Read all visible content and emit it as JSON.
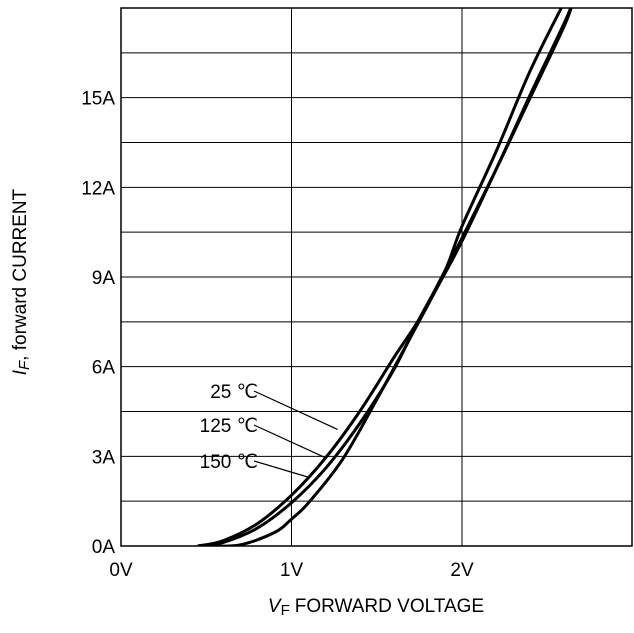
{
  "chart_data": {
    "type": "line",
    "xlabel": "FORWARD VOLTAGE",
    "xlabel_symbol": "V",
    "xlabel_subscript": "F",
    "ylabel": ", forward CURRENT",
    "ylabel_symbol": "I",
    "ylabel_subscript": "F",
    "xlim": [
      0,
      3
    ],
    "ylim": [
      0,
      18
    ],
    "x_ticks": [
      {
        "value": 0,
        "label": "0V"
      },
      {
        "value": 1,
        "label": "1V"
      },
      {
        "value": 2,
        "label": "2V"
      }
    ],
    "y_ticks": [
      {
        "value": 0,
        "label": "0A"
      },
      {
        "value": 3,
        "label": "3A"
      },
      {
        "value": 6,
        "label": "6A"
      },
      {
        "value": 9,
        "label": "9A"
      },
      {
        "value": 12,
        "label": "12A"
      },
      {
        "value": 15,
        "label": "15A"
      }
    ],
    "grid": true,
    "series": [
      {
        "name": "25 ℃",
        "points": [
          [
            0.45,
            0
          ],
          [
            0.6,
            0.12
          ],
          [
            0.8,
            0.6
          ],
          [
            1.0,
            1.45
          ],
          [
            1.2,
            2.6
          ],
          [
            1.4,
            4.1
          ],
          [
            1.6,
            5.9
          ],
          [
            1.75,
            7.6
          ],
          [
            1.9,
            9.2
          ],
          [
            2.0,
            10.7
          ],
          [
            2.2,
            13.2
          ],
          [
            2.4,
            15.9
          ],
          [
            2.6,
            18.2
          ]
        ]
      },
      {
        "name": "125 ℃",
        "points": [
          [
            0.45,
            0
          ],
          [
            0.6,
            0.18
          ],
          [
            0.8,
            0.75
          ],
          [
            1.0,
            1.7
          ],
          [
            1.2,
            2.95
          ],
          [
            1.4,
            4.5
          ],
          [
            1.6,
            6.3
          ],
          [
            1.75,
            7.6
          ],
          [
            1.9,
            9.2
          ],
          [
            2.0,
            10.3
          ],
          [
            2.2,
            12.6
          ],
          [
            2.4,
            15.0
          ],
          [
            2.6,
            17.4
          ],
          [
            2.65,
            18.2
          ]
        ]
      },
      {
        "name": "150 ℃",
        "points": [
          [
            0.5,
            0
          ],
          [
            0.7,
            0.04
          ],
          [
            0.9,
            0.45
          ],
          [
            1.0,
            0.9
          ],
          [
            1.1,
            1.45
          ],
          [
            1.3,
            2.9
          ],
          [
            1.5,
            4.9
          ],
          [
            1.7,
            7.0
          ],
          [
            1.85,
            8.6
          ],
          [
            2.0,
            10.2
          ],
          [
            2.2,
            12.6
          ],
          [
            2.4,
            15.1
          ],
          [
            2.6,
            17.5
          ],
          [
            2.65,
            18.2
          ]
        ]
      }
    ],
    "annotations": [
      {
        "text": "25 ℃",
        "series": "25 ℃",
        "anchor": [
          1.27,
          3.9
        ]
      },
      {
        "text": "125 ℃",
        "series": "125 ℃",
        "anchor": [
          1.2,
          2.95
        ]
      },
      {
        "text": "150 ℃",
        "series": "150 ℃",
        "anchor": [
          1.1,
          2.3
        ]
      }
    ]
  },
  "colors": {
    "axis": "#000000",
    "grid": "#000000",
    "curve": "#000000",
    "background": "#ffffff"
  }
}
